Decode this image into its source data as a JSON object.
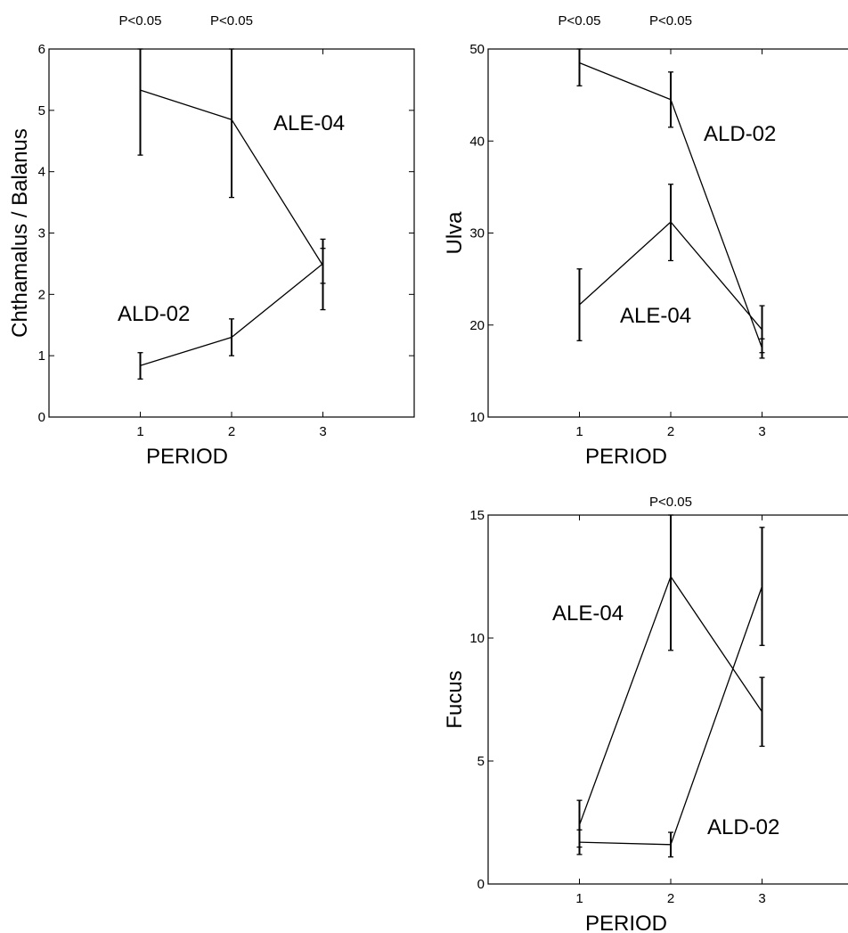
{
  "chart_data": [
    {
      "id": "chthamalus",
      "type": "line",
      "xlabel": "PERIOD",
      "ylabel": "Chthamalus / Balanus",
      "x": [
        1,
        2,
        3
      ],
      "xlim": [
        0,
        4
      ],
      "ylim": [
        0,
        6
      ],
      "xticks": [
        1,
        2,
        3
      ],
      "yticks": [
        0,
        1,
        2,
        3,
        4,
        5,
        6
      ],
      "annotations": [
        {
          "text": "P<0.05",
          "x": 1
        },
        {
          "text": "P<0.05",
          "x": 2
        }
      ],
      "series": [
        {
          "name": "ALE-04",
          "values": [
            5.33,
            4.85,
            2.47
          ],
          "err_low": [
            4.27,
            3.58,
            2.18
          ],
          "err_high": [
            6.0,
            6.0,
            2.75
          ]
        },
        {
          "name": "ALD-02",
          "values": [
            0.84,
            1.3,
            2.5
          ],
          "err_low": [
            0.62,
            1.0,
            1.75
          ],
          "err_high": [
            1.05,
            1.6,
            2.9
          ]
        }
      ]
    },
    {
      "id": "ulva",
      "type": "line",
      "xlabel": "PERIOD",
      "ylabel": "Ulva",
      "x": [
        1,
        2,
        3
      ],
      "xlim": [
        0,
        4
      ],
      "ylim": [
        10,
        50
      ],
      "xticks": [
        1,
        2,
        3
      ],
      "yticks": [
        10,
        20,
        30,
        40,
        50
      ],
      "annotations": [
        {
          "text": "P<0.05",
          "x": 1
        },
        {
          "text": "P<0.05",
          "x": 2
        }
      ],
      "series": [
        {
          "name": "ALD-02",
          "values": [
            48.5,
            44.5,
            17.5
          ],
          "err_low": [
            46.0,
            41.5,
            16.4
          ],
          "err_high": [
            50.0,
            47.5,
            18.5
          ]
        },
        {
          "name": "ALE-04",
          "values": [
            22.2,
            31.2,
            19.5
          ],
          "err_low": [
            18.3,
            27.0,
            17.0
          ],
          "err_high": [
            26.1,
            35.3,
            22.1
          ]
        }
      ]
    },
    {
      "id": "fucus",
      "type": "line",
      "xlabel": "PERIOD",
      "ylabel": "Fucus",
      "x": [
        1,
        2,
        3
      ],
      "xlim": [
        0,
        4
      ],
      "ylim": [
        0,
        15
      ],
      "xticks": [
        1,
        2,
        3
      ],
      "yticks": [
        0,
        5,
        10,
        15
      ],
      "annotations": [
        {
          "text": "P<0.05",
          "x": 2
        }
      ],
      "series": [
        {
          "name": "ALE-04",
          "values": [
            2.4,
            12.5,
            7.0
          ],
          "err_low": [
            1.5,
            9.5,
            5.6
          ],
          "err_high": [
            3.4,
            15.0,
            8.4
          ]
        },
        {
          "name": "ALD-02",
          "values": [
            1.7,
            1.6,
            12.1
          ],
          "err_low": [
            1.2,
            1.1,
            9.7
          ],
          "err_high": [
            2.2,
            2.1,
            14.5
          ]
        }
      ]
    }
  ]
}
